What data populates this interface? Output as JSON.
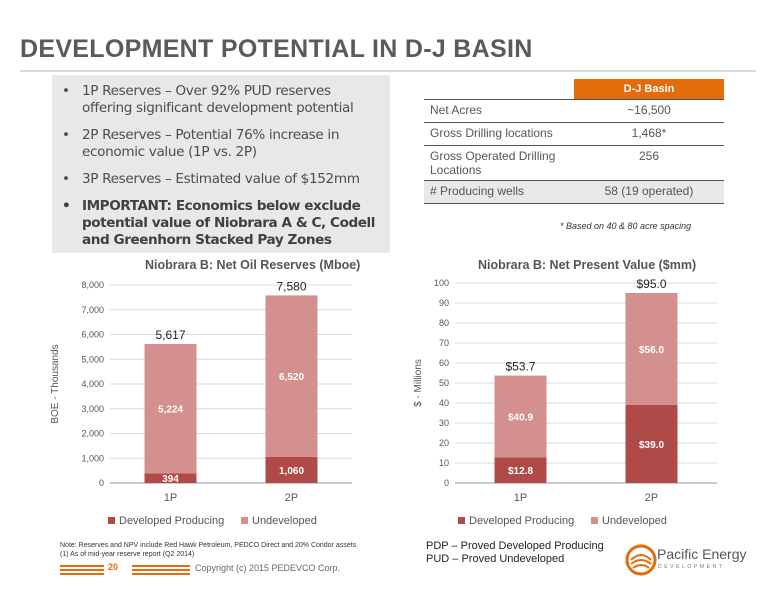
{
  "slide": {
    "title": "DEVELOPMENT POTENTIAL IN D-J BASIN",
    "bullets": [
      "1P Reserves – Over 92% PUD reserves offering significant development potential",
      "2P Reserves – Potential 76% increase in economic value (1P vs. 2P)",
      "3P Reserves – Estimated value of $152mm"
    ],
    "important_bullet": "IMPORTANT: Economics below exclude potential value of Niobrara A & C, Codell and Greenhorn Stacked Pay Zones"
  },
  "table": {
    "header": "D-J Basin",
    "rows": [
      {
        "label": "Net Acres",
        "value": "~16,500"
      },
      {
        "label": "Gross Drilling locations",
        "value": "1,468*"
      },
      {
        "label": "Gross Operated Drilling Locations",
        "value": "256"
      },
      {
        "label": "# Producing wells",
        "value": "58 (19 operated)"
      }
    ],
    "footnote": "* Based on 40 & 80 acre spacing"
  },
  "colors": {
    "accent": "#e46c0a",
    "developed_producing": "#b04a48",
    "undeveloped": "#d4908f"
  },
  "chart_data": [
    {
      "type": "bar",
      "stacked": true,
      "title": "Niobrara B: Net Oil Reserves (Mboe)",
      "ylabel": "BOE - Thousands",
      "categories": [
        "1P",
        "2P"
      ],
      "series": [
        {
          "name": "Developed Producing",
          "values": [
            394,
            1060
          ],
          "labels": [
            "394",
            "1,060"
          ]
        },
        {
          "name": "Undeveloped",
          "values": [
            5224,
            6520
          ],
          "labels": [
            "5,224",
            "6,520"
          ]
        }
      ],
      "totals": [
        "5,617",
        "7,580"
      ],
      "ylim": [
        0,
        8000
      ],
      "yticks": [
        "0",
        "1,000",
        "2,000",
        "3,000",
        "4,000",
        "5,000",
        "6,000",
        "7,000",
        "8,000"
      ],
      "legend": "bottom"
    },
    {
      "type": "bar",
      "stacked": true,
      "title": "Niobrara B: Net Present Value ($mm)",
      "ylabel": "$ - Millions",
      "categories": [
        "1P",
        "2P"
      ],
      "series": [
        {
          "name": "Developed Producing",
          "values": [
            12.8,
            39.0
          ],
          "labels": [
            "$12.8",
            "$39.0"
          ]
        },
        {
          "name": "Undeveloped",
          "values": [
            40.9,
            56.0
          ],
          "labels": [
            "$40.9",
            "$56.0"
          ]
        }
      ],
      "totals": [
        "$53.7",
        "$95.0"
      ],
      "ylim": [
        0,
        100
      ],
      "yticks": [
        "0",
        "10",
        "20",
        "30",
        "40",
        "50",
        "60",
        "70",
        "80",
        "90",
        "100"
      ],
      "legend": "bottom"
    }
  ],
  "footer": {
    "note_line1": "Note: Reserves and NPV include Red Hawk Petroleum, PEDCO Direct and 20% Condor assets",
    "note_line2": "(1) As of mid-year reserve report (Q2 2014)",
    "page": "20",
    "copyright": "Copyright (c) 2015 PEDEVCO Corp.",
    "pdp": "PDP – Proved Developed Producing",
    "pud": "PUD – Proved Undeveloped",
    "logo_name": "Pacific Energy",
    "logo_sub": "DEVELOPMENT"
  }
}
